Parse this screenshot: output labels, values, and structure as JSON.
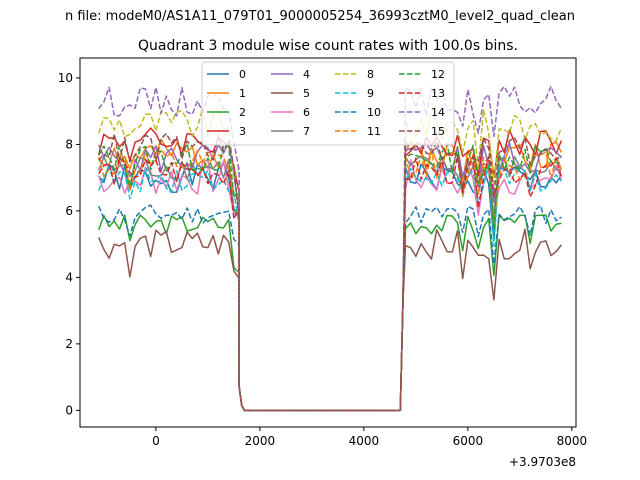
{
  "suptitle": "n file: modeM0/AS1A11_079T01_9000005254_36993cztM0_level2_quad_clean",
  "chart_data": {
    "type": "line",
    "title": "Quadrant 3 module wise count rates with 100.0s bins.",
    "xlabel": "",
    "ylabel": "",
    "x_offset_label": "+3.9703e8",
    "xlim": [
      -1460,
      8080
    ],
    "ylim": [
      -0.5,
      10.6
    ],
    "xticks": [
      0,
      2000,
      4000,
      6000,
      8000
    ],
    "xtick_labels": [
      "0",
      "2000",
      "4000",
      "6000",
      "8000"
    ],
    "yticks": [
      0,
      2,
      4,
      6,
      8,
      10
    ],
    "ytick_labels": [
      "0",
      "2",
      "4",
      "6",
      "8",
      "10"
    ],
    "grid": false,
    "legend": {
      "placement": "top-center",
      "columns": 4
    },
    "x": {
      "start": -1100,
      "step": 100,
      "gap_from": 1700,
      "gap_to": 4700,
      "end": 7800
    },
    "gap_value": 0,
    "transitions": {
      "pre_drop": [
        [
          1600,
          0.72
        ],
        [
          1650,
          0.15
        ]
      ],
      "post_rise": [
        [
          4700,
          0.0
        ],
        [
          4750,
          3.2
        ]
      ]
    },
    "series": [
      {
        "name": "0",
        "color": "#1f77b4",
        "dash": "solid",
        "level": 7.0,
        "noise": 0.45,
        "seed": 1
      },
      {
        "name": "1",
        "color": "#ff7f0e",
        "dash": "solid",
        "level": 7.7,
        "noise": 0.45,
        "seed": 2
      },
      {
        "name": "2",
        "color": "#2ca02c",
        "dash": "solid",
        "level": 5.6,
        "noise": 0.3,
        "seed": 3
      },
      {
        "name": "3",
        "color": "#d62728",
        "dash": "solid",
        "level": 8.1,
        "noise": 0.45,
        "seed": 4
      },
      {
        "name": "4",
        "color": "#9467bd",
        "dash": "solid",
        "level": 7.6,
        "noise": 0.5,
        "seed": 5
      },
      {
        "name": "5",
        "color": "#8c564b",
        "dash": "solid",
        "level": 5.0,
        "noise": 0.45,
        "seed": 6
      },
      {
        "name": "6",
        "color": "#e377c2",
        "dash": "solid",
        "level": 7.0,
        "noise": 0.55,
        "seed": 7
      },
      {
        "name": "7",
        "color": "#7f7f7f",
        "dash": "solid",
        "level": 7.3,
        "noise": 0.4,
        "seed": 8
      },
      {
        "name": "8",
        "color": "#bcbd22",
        "dash": "dashed",
        "level": 8.6,
        "noise": 0.5,
        "seed": 9
      },
      {
        "name": "9",
        "color": "#17becf",
        "dash": "dashed",
        "level": 7.0,
        "noise": 0.45,
        "seed": 10
      },
      {
        "name": "10",
        "color": "#1f77b4",
        "dash": "dashed",
        "level": 5.9,
        "noise": 0.3,
        "seed": 11
      },
      {
        "name": "11",
        "color": "#ff7f0e",
        "dash": "dashed",
        "level": 7.4,
        "noise": 0.45,
        "seed": 12
      },
      {
        "name": "12",
        "color": "#2ca02c",
        "dash": "dashed",
        "level": 7.6,
        "noise": 0.45,
        "seed": 13
      },
      {
        "name": "13",
        "color": "#d62728",
        "dash": "dashed",
        "level": 7.2,
        "noise": 0.45,
        "seed": 14
      },
      {
        "name": "14",
        "color": "#9467bd",
        "dash": "dashed",
        "level": 9.3,
        "noise": 0.45,
        "seed": 15
      },
      {
        "name": "15",
        "color": "#8c564b",
        "dash": "dashed",
        "level": 7.9,
        "noise": 0.45,
        "seed": 16
      }
    ]
  }
}
